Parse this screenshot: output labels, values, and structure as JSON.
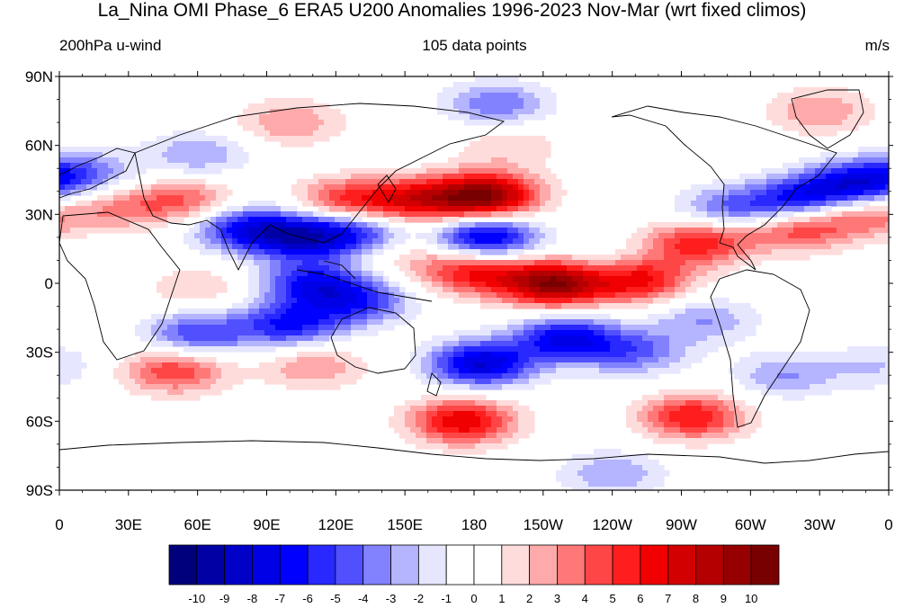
{
  "title": "La_Nina OMI Phase_6 ERA5 U200 Anomalies 1996-2023 Nov-Mar (wrt fixed climos)",
  "subtitle_left": "200hPa u-wind",
  "subtitle_center": "105 data points",
  "subtitle_right": "m/s",
  "chart_data": {
    "type": "heatmap",
    "projection": "cylindrical-equidistant",
    "lon_range": [
      0,
      360
    ],
    "lat_range": [
      -90,
      90
    ],
    "lat_ticks": [
      {
        "value": 90,
        "label": "90N"
      },
      {
        "value": 60,
        "label": "60N"
      },
      {
        "value": 30,
        "label": "30N"
      },
      {
        "value": 0,
        "label": "0"
      },
      {
        "value": -30,
        "label": "30S"
      },
      {
        "value": -60,
        "label": "60S"
      },
      {
        "value": -90,
        "label": "90S"
      }
    ],
    "lon_ticks": [
      {
        "value": 0,
        "label": "0"
      },
      {
        "value": 30,
        "label": "30E"
      },
      {
        "value": 60,
        "label": "60E"
      },
      {
        "value": 90,
        "label": "90E"
      },
      {
        "value": 120,
        "label": "120E"
      },
      {
        "value": 150,
        "label": "150E"
      },
      {
        "value": 180,
        "label": "180"
      },
      {
        "value": 210,
        "label": "150W"
      },
      {
        "value": 240,
        "label": "120W"
      },
      {
        "value": 270,
        "label": "90W"
      },
      {
        "value": 300,
        "label": "60W"
      },
      {
        "value": 330,
        "label": "30W"
      },
      {
        "value": 360,
        "label": "0"
      }
    ],
    "colorbar": {
      "labels": [
        "-10",
        "-9",
        "-8",
        "-7",
        "-6",
        "-5",
        "-4",
        "-3",
        "-2",
        "-1",
        "0",
        "1",
        "2",
        "3",
        "4",
        "5",
        "6",
        "7",
        "8",
        "9",
        "10"
      ],
      "colors": [
        "#00007d",
        "#0000a5",
        "#0000c8",
        "#0000e6",
        "#0000ff",
        "#2828ff",
        "#5050ff",
        "#8282ff",
        "#b4b4ff",
        "#e6e6ff",
        "#ffffff",
        "#ffffff",
        "#ffdcdc",
        "#ffaaaa",
        "#ff7878",
        "#ff4646",
        "#ff1e1e",
        "#f00000",
        "#d20000",
        "#b40000",
        "#960000",
        "#780000"
      ]
    },
    "anomalies": [
      {
        "lon": 185,
        "lat": 38,
        "amp": 10
      },
      {
        "lon": 155,
        "lat": 36,
        "amp": 6
      },
      {
        "lon": 125,
        "lat": 36,
        "amp": 5
      },
      {
        "lon": 55,
        "lat": 36,
        "amp": 4
      },
      {
        "lon": 25,
        "lat": 33,
        "amp": 3
      },
      {
        "lon": 215,
        "lat": 0,
        "amp": 10
      },
      {
        "lon": 250,
        "lat": 2,
        "amp": 8
      },
      {
        "lon": 180,
        "lat": 5,
        "amp": 6
      },
      {
        "lon": 278,
        "lat": 18,
        "amp": 6
      },
      {
        "lon": 320,
        "lat": 24,
        "amp": 5
      },
      {
        "lon": 348,
        "lat": 30,
        "amp": 4
      },
      {
        "lon": 185,
        "lat": 20,
        "amp": -8
      },
      {
        "lon": 105,
        "lat": 20,
        "amp": -7
      },
      {
        "lon": 80,
        "lat": 24,
        "amp": -6
      },
      {
        "lon": 130,
        "lat": 22,
        "amp": -5
      },
      {
        "lon": 110,
        "lat": 0,
        "amp": -6
      },
      {
        "lon": 130,
        "lat": -8,
        "amp": -5
      },
      {
        "lon": 100,
        "lat": -18,
        "amp": -6
      },
      {
        "lon": 60,
        "lat": -22,
        "amp": -5
      },
      {
        "lon": 183,
        "lat": -35,
        "amp": -8
      },
      {
        "lon": 220,
        "lat": -24,
        "amp": -7
      },
      {
        "lon": 250,
        "lat": -30,
        "amp": -4
      },
      {
        "lon": 280,
        "lat": -16,
        "amp": -3
      },
      {
        "lon": 320,
        "lat": 36,
        "amp": -6
      },
      {
        "lon": 345,
        "lat": 43,
        "amp": -7
      },
      {
        "lon": 290,
        "lat": 32,
        "amp": -4
      },
      {
        "lon": 10,
        "lat": 48,
        "amp": -4
      },
      {
        "lon": 60,
        "lat": 56,
        "amp": -3
      },
      {
        "lon": 190,
        "lat": 78,
        "amp": -4
      },
      {
        "lon": 315,
        "lat": -40,
        "amp": -3
      },
      {
        "lon": 240,
        "lat": 5,
        "amp": -3
      },
      {
        "lon": 175,
        "lat": -60,
        "amp": 7
      },
      {
        "lon": 275,
        "lat": -58,
        "amp": 6
      },
      {
        "lon": 50,
        "lat": -38,
        "amp": 5
      },
      {
        "lon": 110,
        "lat": -36,
        "amp": 3
      },
      {
        "lon": 150,
        "lat": 13,
        "amp": 2
      },
      {
        "lon": 195,
        "lat": 60,
        "amp": 2
      },
      {
        "lon": 100,
        "lat": 70,
        "amp": 3
      },
      {
        "lon": 330,
        "lat": 75,
        "amp": 3
      },
      {
        "lon": 240,
        "lat": -83,
        "amp": -3
      },
      {
        "lon": 355,
        "lat": -36,
        "amp": -2
      },
      {
        "lon": 60,
        "lat": -2,
        "amp": 2
      }
    ]
  }
}
